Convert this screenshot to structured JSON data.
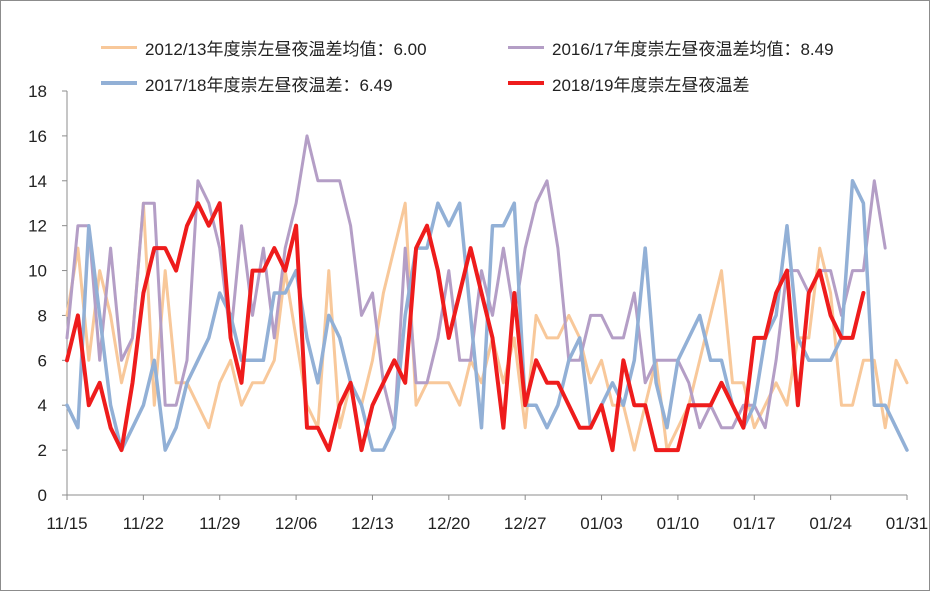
{
  "chart_data": {
    "type": "line",
    "title": "",
    "xlabel": "",
    "ylabel": "",
    "ylim": [
      0,
      18
    ],
    "yticks": [
      "0",
      "2",
      "4",
      "6",
      "8",
      "10",
      "12",
      "14",
      "16",
      "18"
    ],
    "xticks": [
      "11/15",
      "11/22",
      "11/29",
      "12/06",
      "12/13",
      "12/20",
      "12/27",
      "01/03",
      "01/10",
      "01/17",
      "01/24",
      "01/31"
    ],
    "legend_position": "top",
    "series": [
      {
        "name": "2012/13年度崇左昼夜温差均值：6.00",
        "color": "#f8c89a",
        "width": 3,
        "values": [
          8,
          11,
          6,
          10,
          8,
          5,
          7,
          13,
          4,
          10,
          5,
          5,
          4,
          3,
          5,
          6,
          4,
          5,
          5,
          6,
          10,
          7,
          4,
          3,
          10,
          3,
          5,
          4,
          6,
          9,
          11,
          13,
          4,
          5,
          5,
          5,
          4,
          6,
          5,
          7,
          5,
          7,
          3,
          8,
          7,
          7,
          8,
          7,
          5,
          6,
          4,
          4,
          2,
          4,
          6,
          2,
          3,
          4,
          6,
          8,
          10,
          5,
          5,
          3,
          4,
          5,
          4,
          7,
          7,
          11,
          9,
          4,
          4,
          6,
          6,
          3,
          6,
          5
        ]
      },
      {
        "name": "2016/17年度崇左昼夜温差均值：8.49",
        "color": "#b49ec6",
        "width": 3,
        "values": [
          7,
          12,
          12,
          6,
          11,
          6,
          7,
          13,
          13,
          4,
          4,
          6,
          14,
          13,
          11,
          7,
          12,
          8,
          11,
          7,
          11,
          13,
          16,
          14,
          14,
          14,
          12,
          8,
          9,
          5,
          3,
          11,
          5,
          5,
          7,
          10,
          6,
          6,
          10,
          8,
          11,
          8,
          11,
          13,
          14,
          11,
          6,
          6,
          8,
          8,
          7,
          7,
          9,
          5,
          6,
          6,
          6,
          5,
          3,
          4,
          3,
          3,
          4,
          4,
          3,
          6,
          10,
          10,
          9,
          10,
          10,
          8,
          10,
          10,
          14,
          11
        ]
      },
      {
        "name": "2017/18年度崇左昼夜温差：6.49",
        "color": "#92b0d6",
        "width": 3.5,
        "values": [
          4,
          3,
          12,
          8,
          4,
          2,
          3,
          4,
          6,
          2,
          3,
          5,
          6,
          7,
          9,
          8,
          6,
          6,
          6,
          9,
          9,
          10,
          7,
          5,
          8,
          7,
          5,
          4,
          2,
          2,
          3,
          8,
          11,
          11,
          13,
          12,
          13,
          8,
          3,
          12,
          12,
          13,
          4,
          4,
          3,
          4,
          6,
          7,
          3,
          4,
          5,
          4,
          6,
          11,
          5,
          3,
          6,
          7,
          8,
          6,
          6,
          4,
          3,
          4,
          7,
          8,
          12,
          7,
          6,
          6,
          6,
          7,
          14,
          13,
          4,
          4,
          3,
          2
        ]
      },
      {
        "name": "2018/19年度崇左昼夜温差",
        "color": "#ee1c1c",
        "width": 4,
        "values": [
          6,
          8,
          4,
          5,
          3,
          2,
          5,
          9,
          11,
          11,
          10,
          12,
          13,
          12,
          13,
          7,
          5,
          10,
          10,
          11,
          10,
          12,
          3,
          3,
          2,
          4,
          5,
          2,
          4,
          5,
          6,
          5,
          11,
          12,
          10,
          7,
          9,
          11,
          9,
          7,
          3,
          9,
          4,
          6,
          5,
          5,
          4,
          3,
          3,
          4,
          2,
          6,
          4,
          4,
          2,
          2,
          2,
          4,
          4,
          4,
          5,
          4,
          3,
          7,
          7,
          9,
          10,
          4,
          9,
          10,
          8,
          7,
          7,
          9
        ]
      }
    ]
  }
}
